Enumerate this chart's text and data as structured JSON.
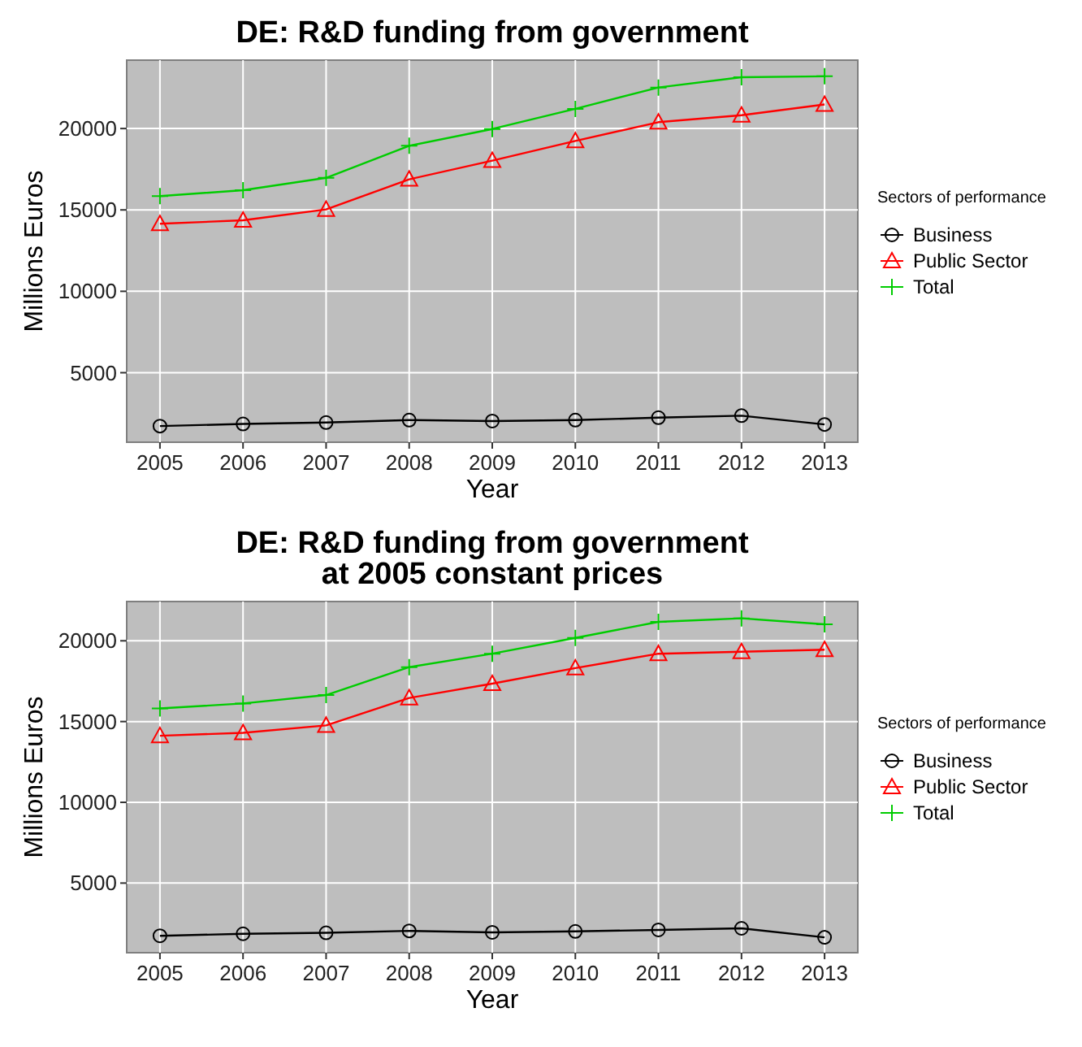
{
  "chart_data": [
    {
      "type": "line",
      "title": "DE: R&D funding from government",
      "xlabel": "Year",
      "ylabel": "Millions Euros",
      "legend_title": "Sectors of performance",
      "x": [
        2005,
        2006,
        2007,
        2008,
        2009,
        2010,
        2011,
        2012,
        2013
      ],
      "series": [
        {
          "name": "Business",
          "color": "#000000",
          "marker": "circle",
          "values": [
            1720,
            1850,
            1940,
            2090,
            2030,
            2090,
            2240,
            2360,
            1820
          ]
        },
        {
          "name": "Public Sector",
          "color": "#ff0000",
          "marker": "triangle",
          "values": [
            14150,
            14360,
            15030,
            16880,
            18030,
            19240,
            20390,
            20820,
            21480
          ]
        },
        {
          "name": "Total",
          "color": "#00cc00",
          "marker": "cross",
          "values": [
            15850,
            16210,
            16970,
            18940,
            19970,
            21210,
            22520,
            23150,
            23210
          ]
        }
      ],
      "xlim": [
        2004.6,
        2013.4
      ],
      "xticks": [
        2005,
        2006,
        2007,
        2008,
        2009,
        2010,
        2011,
        2012,
        2013
      ],
      "ylim": [
        730,
        24200
      ],
      "yticks": [
        5000,
        10000,
        15000,
        20000
      ],
      "grid": true,
      "legend": "right"
    },
    {
      "type": "line",
      "title": "DE: R&D funding from government\nat 2005 constant prices",
      "xlabel": "Year",
      "ylabel": "Millions Euros",
      "legend_title": "Sectors of performance",
      "x": [
        2005,
        2006,
        2007,
        2008,
        2009,
        2010,
        2011,
        2012,
        2013
      ],
      "series": [
        {
          "name": "Business",
          "color": "#000000",
          "marker": "circle",
          "values": [
            1735,
            1860,
            1920,
            2040,
            1950,
            2010,
            2100,
            2200,
            1640
          ]
        },
        {
          "name": "Public Sector",
          "color": "#ff0000",
          "marker": "triangle",
          "values": [
            14120,
            14300,
            14760,
            16460,
            17350,
            18310,
            19200,
            19320,
            19450
          ]
        },
        {
          "name": "Total",
          "color": "#00cc00",
          "marker": "cross",
          "values": [
            15810,
            16120,
            16640,
            18370,
            19200,
            20180,
            21170,
            21390,
            21020
          ]
        }
      ],
      "xlim": [
        2004.6,
        2013.4
      ],
      "xticks": [
        2005,
        2006,
        2007,
        2008,
        2009,
        2010,
        2011,
        2012,
        2013
      ],
      "ylim": [
        690,
        22430
      ],
      "yticks": [
        5000,
        10000,
        15000,
        20000
      ],
      "grid": true,
      "legend": "right"
    }
  ]
}
